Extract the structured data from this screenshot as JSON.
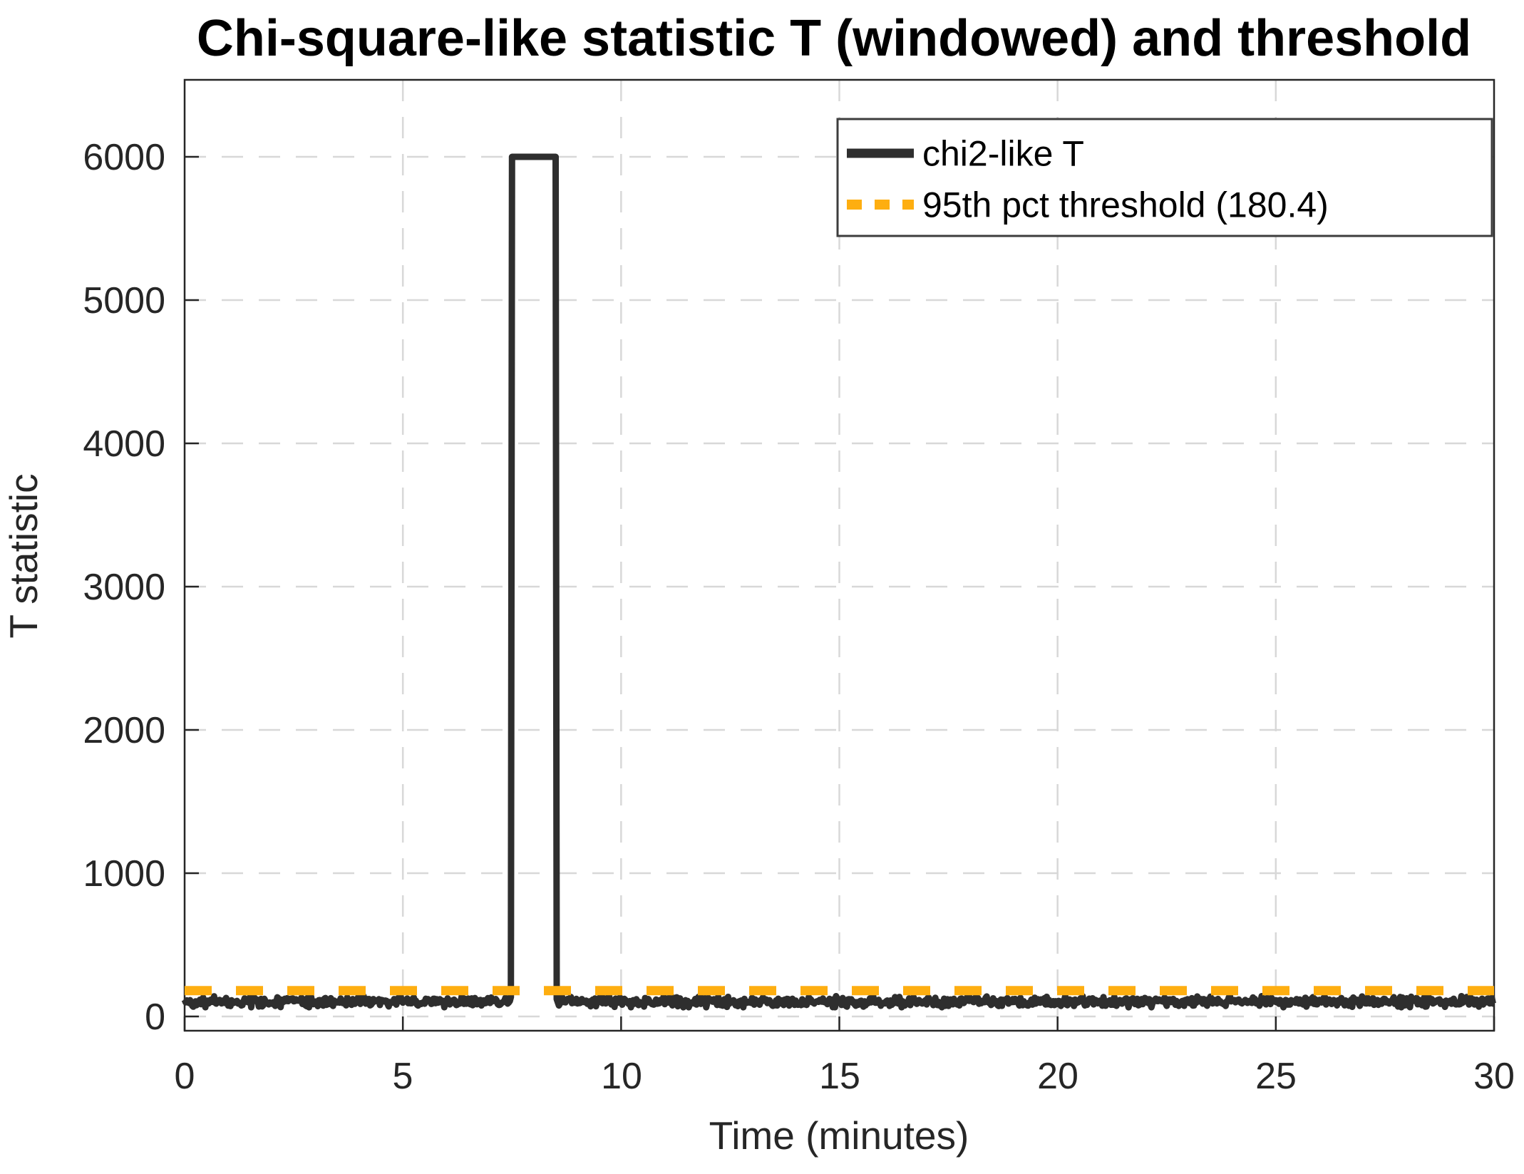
{
  "title": "Chi-square-like statistic T (windowed) and threshold",
  "axes": {
    "xlabel": "Time (minutes)",
    "ylabel": "T statistic",
    "grid_style": "dashed",
    "x_tick_labels": [
      "0",
      "5",
      "10",
      "15",
      "20",
      "25",
      "30"
    ],
    "y_tick_labels": [
      "0",
      "1000",
      "2000",
      "3000",
      "4000",
      "5000",
      "6000"
    ]
  },
  "legend": {
    "position": "northeast",
    "entries": [
      {
        "label": "chi2-like T",
        "color": "#2e2e2e",
        "style": "solid"
      },
      {
        "label": "95th pct threshold (180.4)",
        "color": "#feae10",
        "style": "dashed"
      }
    ]
  },
  "colors": {
    "series_main": "#2e2e2e",
    "threshold": "#feae10",
    "grid": "#d8d8d8",
    "axis": "#262626",
    "background": "#ffffff",
    "legend_border": "#3d3d3d"
  },
  "chart_data": {
    "type": "line",
    "title": "Chi-square-like statistic T (windowed) and threshold",
    "xlabel": "Time (minutes)",
    "ylabel": "T statistic",
    "xlim": [
      0,
      30
    ],
    "ylim": [
      -100,
      6540
    ],
    "grid": "on, dashed",
    "legend_position": "northeast",
    "x_ticks": [
      0,
      5,
      10,
      15,
      20,
      25,
      30
    ],
    "y_ticks": [
      0,
      1000,
      2000,
      3000,
      4000,
      5000,
      6000
    ],
    "x_tick_labels": [
      "0",
      "5",
      "10",
      "15",
      "20",
      "25",
      "30"
    ],
    "y_tick_labels": [
      "0",
      "1000",
      "2000",
      "3000",
      "4000",
      "5000",
      "6000"
    ],
    "series": [
      {
        "name": "chi2-like T",
        "type": "noisy-line-with-rect-pulse",
        "color": "#2e2e2e",
        "style": "solid",
        "baseline_mean": 103,
        "baseline_range": [
          64,
          142
        ],
        "noise_seed": 42,
        "n_points": 1201,
        "spike": {
          "start_min": 7.5,
          "end_min": 8.5,
          "value": 6000
        }
      },
      {
        "name": "95th pct threshold (180.4)",
        "type": "constant-line",
        "color": "#feae10",
        "style": "dashed",
        "value": 180.4
      }
    ]
  }
}
